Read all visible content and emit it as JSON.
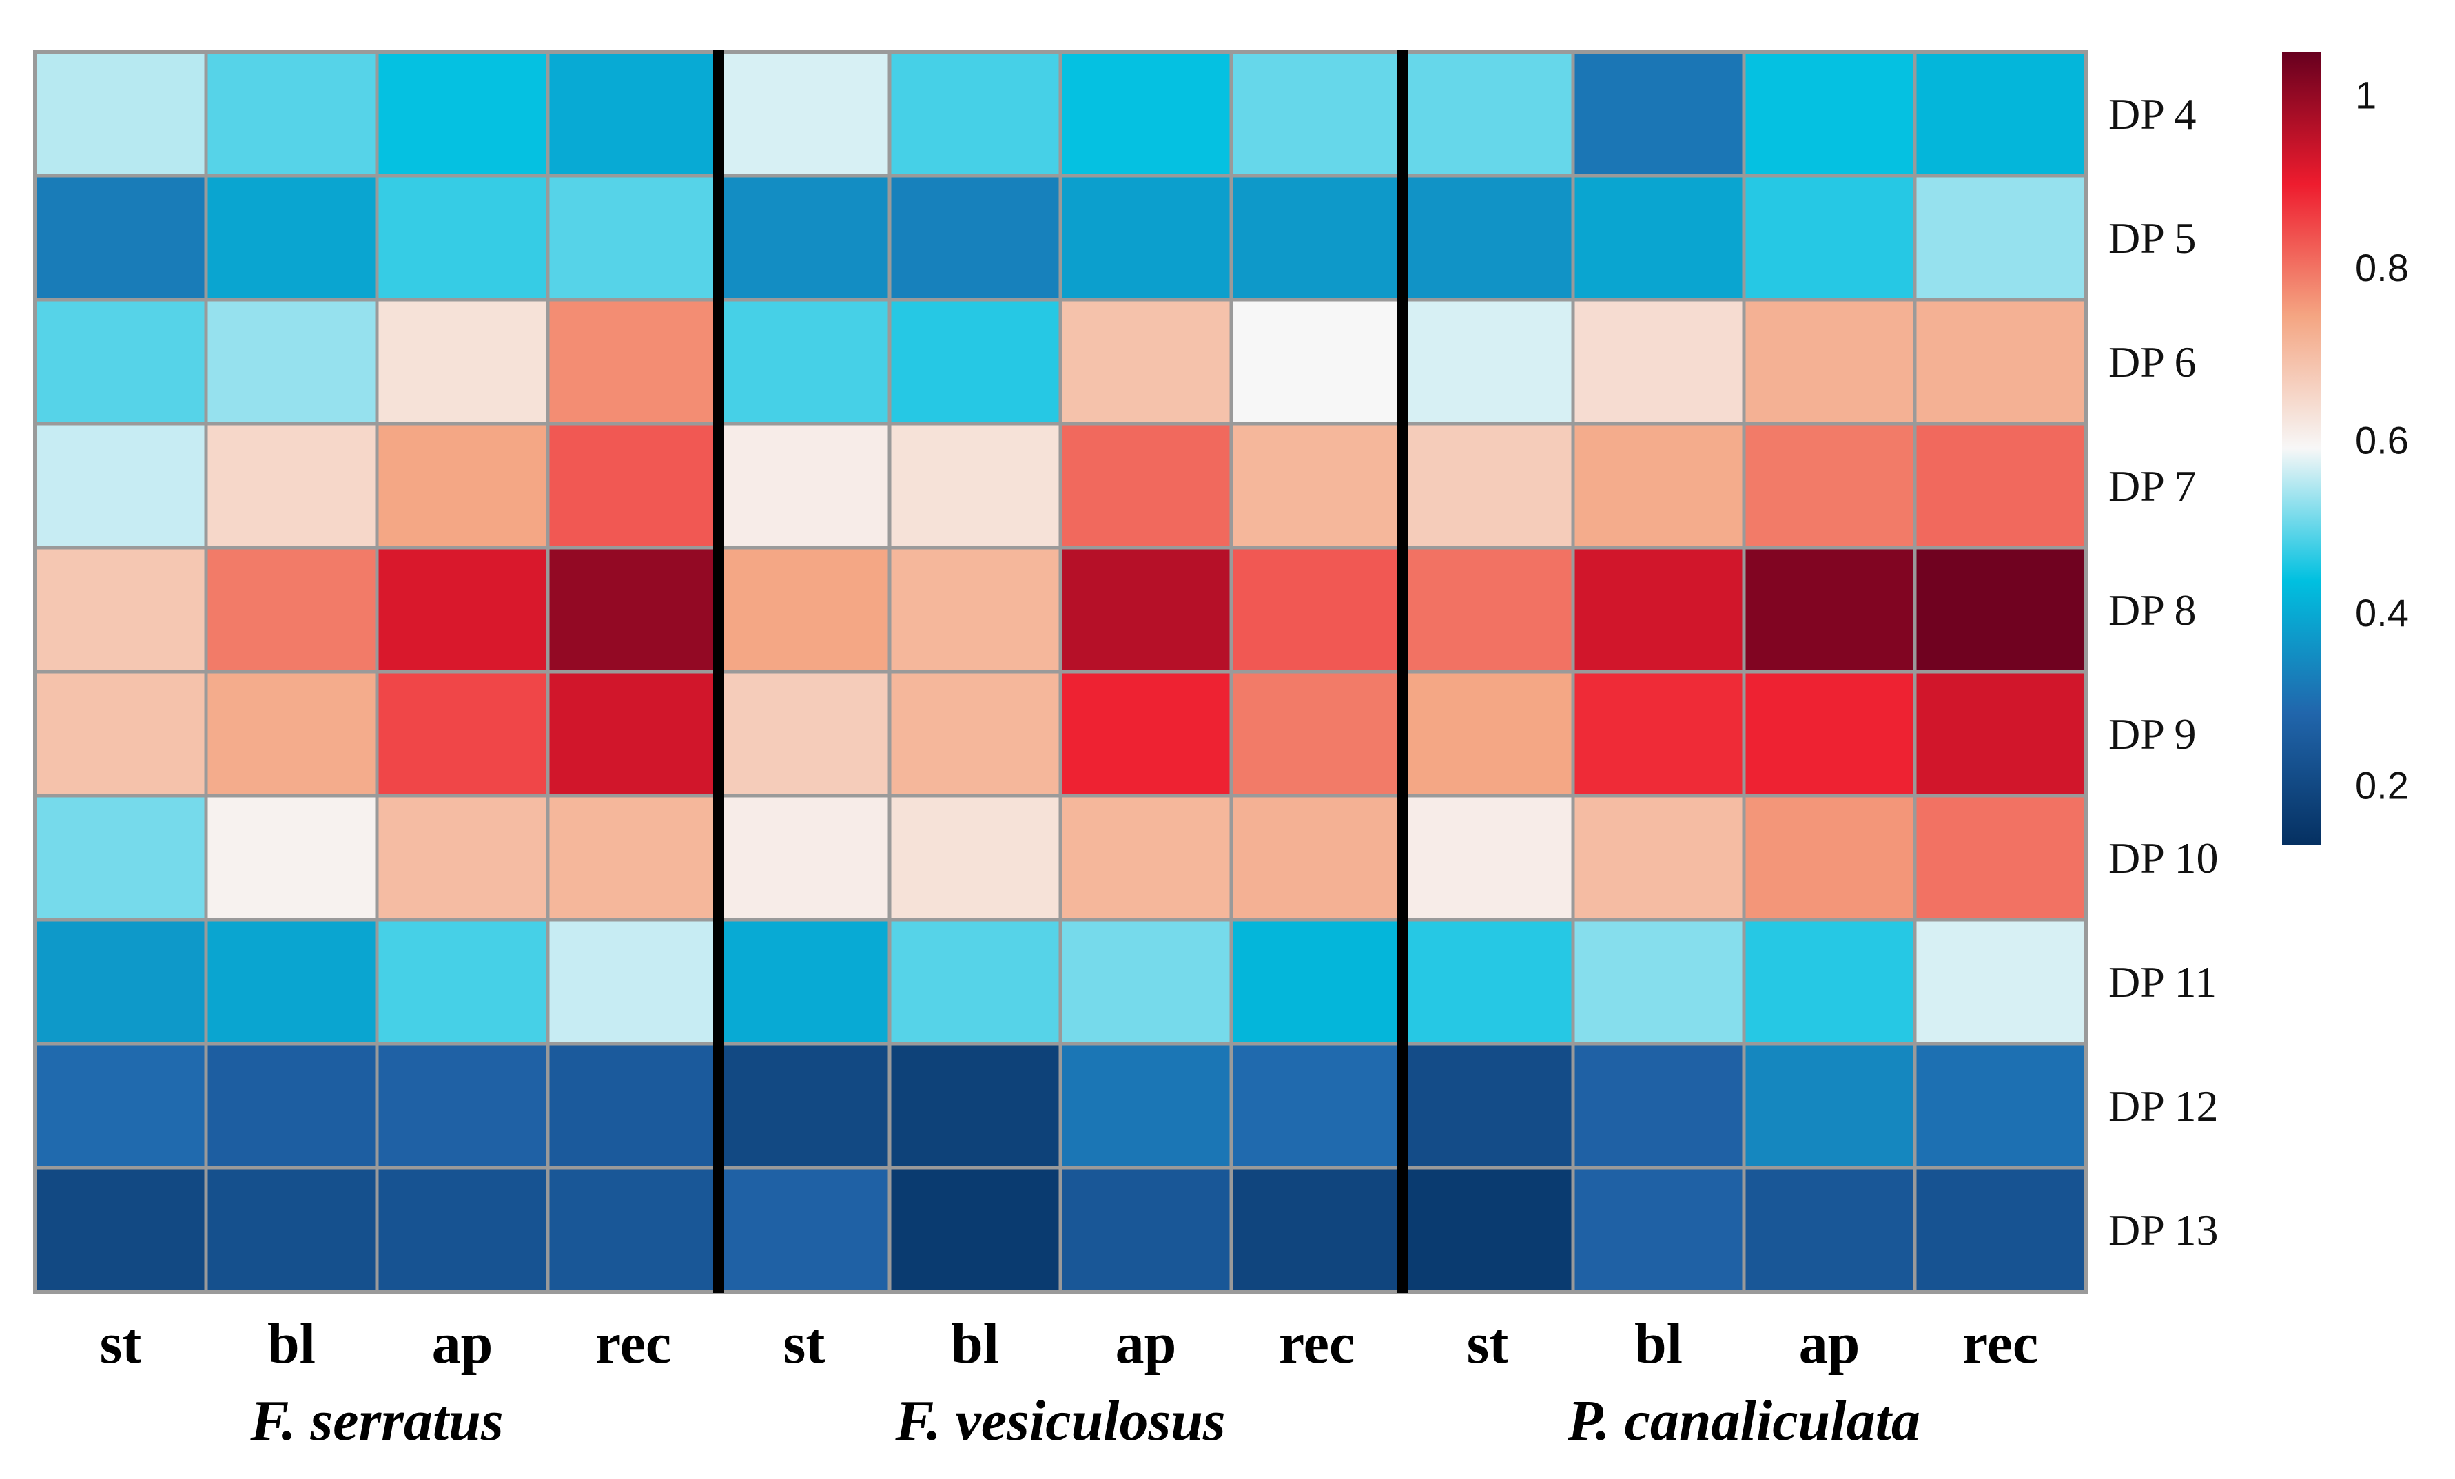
{
  "chart_data": {
    "type": "heatmap",
    "title": "",
    "rows": [
      "DP 4",
      "DP 5",
      "DP 6",
      "DP 7",
      "DP 8",
      "DP 9",
      "DP 10",
      "DP 11",
      "DP 12",
      "DP 13"
    ],
    "columns": [
      "st",
      "bl",
      "ap",
      "rec",
      "st",
      "bl",
      "ap",
      "rec",
      "st",
      "bl",
      "ap",
      "rec"
    ],
    "groups": [
      {
        "name": "F. serratus",
        "columns": [
          0,
          1,
          2,
          3
        ]
      },
      {
        "name": "F. vesiculosus",
        "columns": [
          4,
          5,
          6,
          7
        ]
      },
      {
        "name": "P. canaliculata",
        "columns": [
          8,
          9,
          10,
          11
        ]
      }
    ],
    "values": [
      [
        0.55,
        0.49,
        0.44,
        0.4,
        0.57,
        0.48,
        0.44,
        0.5,
        0.5,
        0.31,
        0.44,
        0.42
      ],
      [
        0.32,
        0.39,
        0.47,
        0.49,
        0.35,
        0.33,
        0.38,
        0.37,
        0.36,
        0.39,
        0.46,
        0.53
      ],
      [
        0.49,
        0.53,
        0.63,
        0.77,
        0.48,
        0.46,
        0.69,
        0.59,
        0.57,
        0.64,
        0.72,
        0.72
      ],
      [
        0.56,
        0.65,
        0.74,
        0.83,
        0.61,
        0.63,
        0.81,
        0.71,
        0.67,
        0.73,
        0.79,
        0.81
      ],
      [
        0.68,
        0.79,
        0.92,
        1.0,
        0.74,
        0.71,
        0.96,
        0.83,
        0.8,
        0.93,
        1.02,
        1.04
      ],
      [
        0.69,
        0.73,
        0.85,
        0.93,
        0.67,
        0.71,
        0.89,
        0.79,
        0.74,
        0.88,
        0.89,
        0.93
      ],
      [
        0.51,
        0.6,
        0.7,
        0.71,
        0.61,
        0.63,
        0.71,
        0.72,
        0.61,
        0.7,
        0.76,
        0.8
      ],
      [
        0.37,
        0.39,
        0.48,
        0.56,
        0.4,
        0.49,
        0.51,
        0.42,
        0.46,
        0.52,
        0.46,
        0.57
      ],
      [
        0.29,
        0.26,
        0.27,
        0.25,
        0.2,
        0.18,
        0.31,
        0.29,
        0.21,
        0.27,
        0.34,
        0.3
      ],
      [
        0.2,
        0.22,
        0.23,
        0.24,
        0.27,
        0.16,
        0.24,
        0.19,
        0.16,
        0.27,
        0.24,
        0.23
      ]
    ],
    "colorbar": {
      "min": 0.13,
      "max": 1.05,
      "ticks": [
        0.2,
        0.4,
        0.6,
        0.8,
        1.0
      ],
      "tick_labels": [
        "0.2",
        "0.4",
        "0.6",
        "0.8",
        "1"
      ],
      "colors": [
        "#053061",
        "#2166ac",
        "#00c0e0",
        "#f7f7f7",
        "#f4a582",
        "#ee1c2e",
        "#67001f"
      ]
    }
  }
}
